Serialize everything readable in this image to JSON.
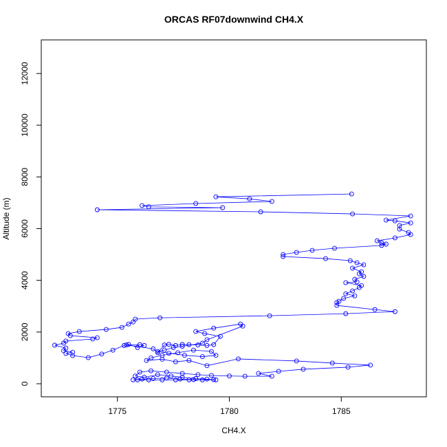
{
  "chart_data": {
    "type": "line",
    "title": "ORCAS RF07downwind CH4.X",
    "x_label": "CH4.X",
    "y_label": "Altitude (m)",
    "color": "#0000ff",
    "markers": "circle",
    "xlim": [
      1771.6,
      1788.8
    ],
    "ylim": [
      -505,
      13300
    ],
    "xticks": [
      1775,
      1780,
      1785
    ],
    "yticks": [
      0,
      2000,
      4000,
      6000,
      8000,
      10000,
      12000
    ],
    "x": [
      1785.46,
      1779.4,
      1780.9,
      1781.9,
      1778.5,
      1776.1,
      1776.4,
      1779.7,
      1774.1,
      1781.4,
      1785.5,
      1788.1,
      1787.0,
      1787.4,
      1788.1,
      1787.6,
      1787.6,
      1788.0,
      1788.1,
      1787.4,
      1786.6,
      1786.8,
      1787.0,
      1786.8,
      1784.7,
      1783.7,
      1783.0,
      1782.4,
      1782.4,
      1784.3,
      1785.4,
      1785.7,
      1786.0,
      1785.5,
      1785.9,
      1785.8,
      1786.0,
      1785.6,
      1785.7,
      1785.2,
      1785.9,
      1785.8,
      1785.5,
      1785.2,
      1785.6,
      1785.1,
      1784.9,
      1784.8,
      1784.8,
      1786.5,
      1787.4,
      1785.2,
      1781.8,
      1776.9,
      1775.8,
      1775.7,
      1775.5,
      1775.2,
      1774.5,
      1773.3,
      1772.8,
      1772.9,
      1774.1,
      1773.9,
      1772.7,
      1772.6,
      1772.2,
      1772.7,
      1772.6,
      1773.0,
      1772.7,
      1773.0,
      1773.7,
      1774.3,
      1774.8,
      1775.3,
      1775.5,
      1775.9,
      1776.2,
      1776.0,
      1775.4,
      1776.6,
      1776.8,
      1777.1,
      1777.3,
      1777.6,
      1777.9,
      1778.2,
      1778.6,
      1779.0,
      1779.3,
      1779.6,
      1778.9,
      1778.5,
      1779.3,
      1780.5,
      1780.6,
      1779.0,
      1778.8,
      1777.9,
      1777.5,
      1777.1,
      1776.8,
      1777.3,
      1778.0,
      1778.8,
      1779.4,
      1779.2,
      1778.4,
      1777.7,
      1777.0,
      1776.5,
      1776.3,
      1777.0,
      1777.6,
      1778.2,
      1779.0,
      1780.4,
      1783.0,
      1784.6,
      1786.3,
      1785.3,
      1783.3,
      1782.2,
      1781.3,
      1781.9,
      1780.7,
      1780.0,
      1779.2,
      1778.6,
      1777.9,
      1777.2,
      1776.5,
      1776.0,
      1775.8,
      1776.2,
      1776.8,
      1777.4,
      1777.9,
      1778.5,
      1779.0,
      1779.4,
      1778.8,
      1778.2,
      1777.6,
      1777.0,
      1776.4,
      1775.9,
      1775.7,
      1776.1,
      1776.6,
      1777.2,
      1777.8,
      1778.4,
      1779.3
    ],
    "values": [
      7340,
      7230,
      7150,
      7050,
      6970,
      6890,
      6840,
      6810,
      6730,
      6650,
      6570,
      6490,
      6330,
      6300,
      6220,
      6120,
      5980,
      5850,
      5770,
      5640,
      5530,
      5450,
      5400,
      5350,
      5240,
      5160,
      5080,
      5000,
      4920,
      4840,
      4760,
      4680,
      4600,
      4470,
      4330,
      4250,
      4150,
      4040,
      3940,
      3910,
      3800,
      3720,
      3590,
      3480,
      3400,
      3300,
      3190,
      3140,
      3030,
      2870,
      2790,
      2710,
      2630,
      2550,
      2500,
      2390,
      2310,
      2180,
      2100,
      2020,
      1940,
      1860,
      1780,
      1730,
      1650,
      1570,
      1490,
      1380,
      1280,
      1220,
      1170,
      1090,
      1010,
      1150,
      1300,
      1480,
      1520,
      1400,
      1480,
      1510,
      1500,
      1350,
      1200,
      1500,
      1520,
      1480,
      1520,
      1510,
      1500,
      1480,
      1510,
      1830,
      1940,
      2020,
      2150,
      2310,
      2230,
      1700,
      1570,
      1450,
      1400,
      1300,
      1250,
      1180,
      1100,
      1050,
      1100,
      1250,
      1300,
      1200,
      1100,
      1000,
      900,
      950,
      850,
      900,
      700,
      960,
      880,
      800,
      720,
      640,
      560,
      480,
      400,
      290,
      290,
      300,
      320,
      350,
      400,
      450,
      500,
      450,
      300,
      250,
      350,
      300,
      250,
      200,
      180,
      150,
      150,
      150,
      150,
      150,
      150,
      150,
      150,
      180,
      200,
      220,
      180,
      160,
      160
    ]
  }
}
